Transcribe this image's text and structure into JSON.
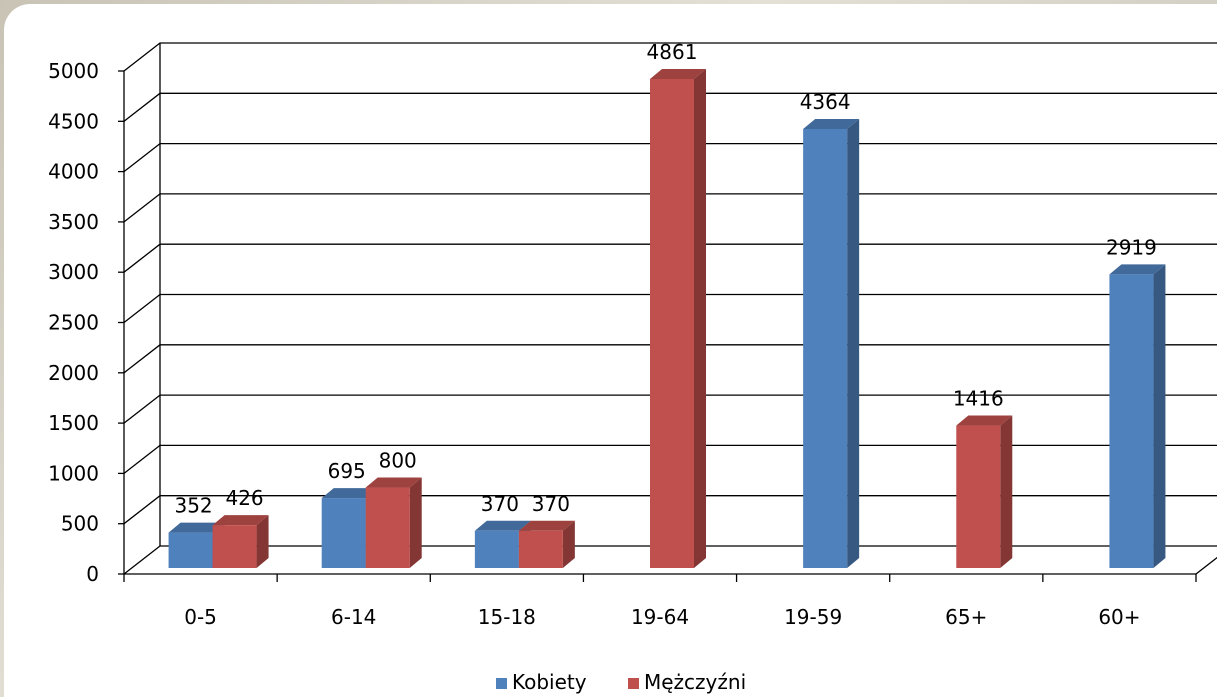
{
  "chart_data": {
    "type": "bar",
    "categories": [
      "0-5",
      "6-14",
      "15-18",
      "19-64",
      "19-59",
      "65+",
      "60+"
    ],
    "series": [
      {
        "name": "Kobiety",
        "values": [
          352,
          695,
          370,
          null,
          4364,
          null,
          2919
        ],
        "color": "#4f81bd"
      },
      {
        "name": "Mężczyźni",
        "values": [
          426,
          800,
          370,
          4861,
          null,
          1416,
          null
        ],
        "color": "#c0504d"
      }
    ],
    "data_labels": [
      [
        "352",
        "695",
        "370",
        "",
        "4364",
        "",
        "2919"
      ],
      [
        "426",
        "800",
        "370",
        "4861",
        "",
        "1416",
        ""
      ]
    ],
    "yticks": [
      "0",
      "500",
      "1000",
      "1500",
      "2000",
      "2500",
      "3000",
      "3500",
      "4000",
      "4500",
      "5000"
    ],
    "ylim": [
      0,
      5000
    ],
    "grid": true,
    "legend_position": "bottom",
    "title": "",
    "xlabel": "",
    "ylabel": ""
  }
}
